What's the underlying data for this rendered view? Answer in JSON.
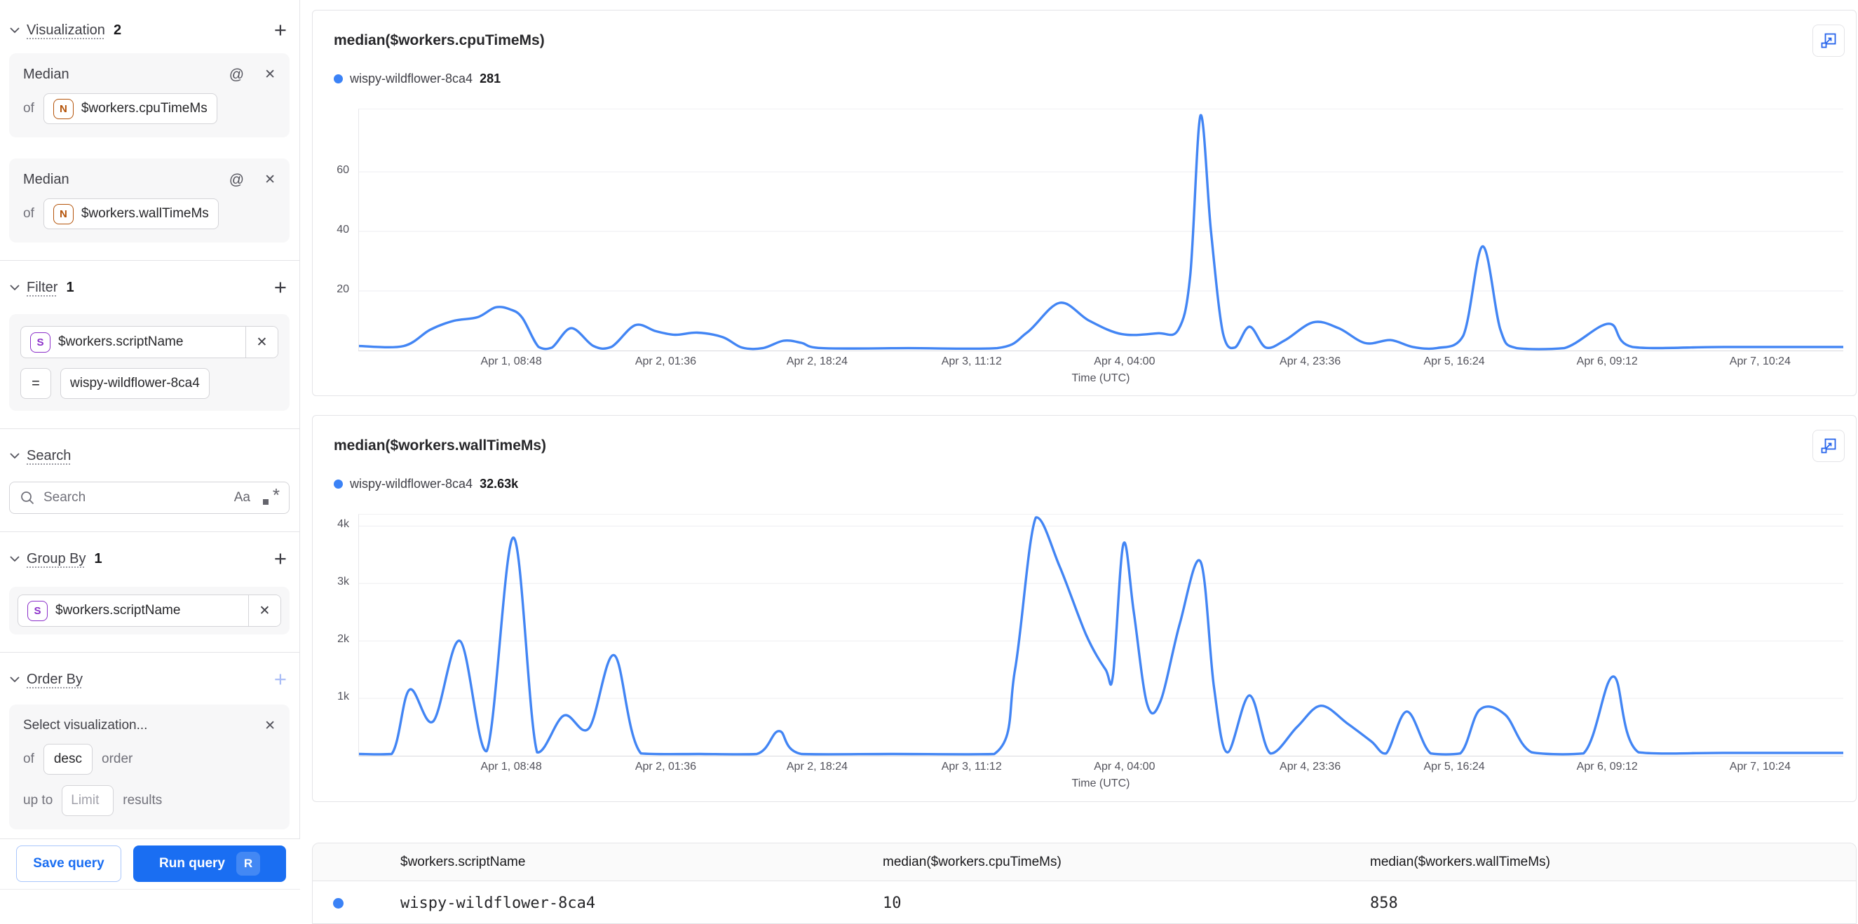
{
  "colors": {
    "accent_blue": "#1a6ef2",
    "chart_line": "#4285f4",
    "legend_dot": "#3b82f6",
    "numeric_badge": "#b45309",
    "string_badge": "#8b2fc9"
  },
  "sidebar": {
    "visualization": {
      "label": "Visualization",
      "count": "2",
      "cards": [
        {
          "title": "Median",
          "of_word": "of",
          "badge": "N",
          "field": "$workers.cpuTimeMs"
        },
        {
          "title": "Median",
          "of_word": "of",
          "badge": "N",
          "field": "$workers.wallTimeMs"
        }
      ]
    },
    "filter": {
      "label": "Filter",
      "count": "1",
      "badge": "S",
      "field": "$workers.scriptName",
      "operator": "=",
      "value": "wispy-wildflower-8ca4"
    },
    "search": {
      "label": "Search",
      "placeholder": "Search",
      "match_case": "Aa"
    },
    "group_by": {
      "label": "Group By",
      "count": "1",
      "badge": "S",
      "field": "$workers.scriptName"
    },
    "order_by": {
      "label": "Order By",
      "placeholder": "Select visualization...",
      "of_word": "of",
      "direction": "desc",
      "order_word": "order",
      "up_to_word": "up to",
      "limit_placeholder": "Limit",
      "results_word": "results"
    },
    "footer": {
      "save_label": "Save query",
      "run_label": "Run query",
      "run_shortcut": "R"
    }
  },
  "chart_data": [
    {
      "type": "line",
      "title": "median($workers.cpuTimeMs)",
      "legend": {
        "name": "wispy-wildflower-8ca4",
        "value": "281"
      },
      "xlabel": "Time (UTC)",
      "ylim": [
        0,
        81
      ],
      "yticks": [
        {
          "v": 20,
          "label": "20"
        },
        {
          "v": 40,
          "label": "40"
        },
        {
          "v": 60,
          "label": "60"
        }
      ],
      "xticks": [
        {
          "f": 0.103,
          "label": "Apr 1, 08:48"
        },
        {
          "f": 0.207,
          "label": "Apr 2, 01:36"
        },
        {
          "f": 0.309,
          "label": "Apr 2, 18:24"
        },
        {
          "f": 0.413,
          "label": "Apr 3, 11:12"
        },
        {
          "f": 0.516,
          "label": "Apr 4, 04:00"
        },
        {
          "f": 0.641,
          "label": "Apr 4, 23:36"
        },
        {
          "f": 0.738,
          "label": "Apr 5, 16:24"
        },
        {
          "f": 0.841,
          "label": "Apr 6, 09:12"
        },
        {
          "f": 0.944,
          "label": "Apr 7, 10:24"
        }
      ],
      "points": [
        [
          0.0,
          1.5
        ],
        [
          0.03,
          1.5
        ],
        [
          0.048,
          7
        ],
        [
          0.064,
          10
        ],
        [
          0.08,
          11.2
        ],
        [
          0.092,
          14.5
        ],
        [
          0.102,
          13.8
        ],
        [
          0.11,
          11
        ],
        [
          0.121,
          1.2
        ],
        [
          0.13,
          1
        ],
        [
          0.143,
          7.5
        ],
        [
          0.158,
          1.5
        ],
        [
          0.17,
          1.2
        ],
        [
          0.186,
          8.5
        ],
        [
          0.2,
          6.5
        ],
        [
          0.213,
          5.3
        ],
        [
          0.228,
          6
        ],
        [
          0.245,
          4.5
        ],
        [
          0.258,
          1
        ],
        [
          0.272,
          0.8
        ],
        [
          0.286,
          3.3
        ],
        [
          0.298,
          2.6
        ],
        [
          0.312,
          0.8
        ],
        [
          0.37,
          0.8
        ],
        [
          0.43,
          0.8
        ],
        [
          0.45,
          6
        ],
        [
          0.472,
          16
        ],
        [
          0.492,
          10
        ],
        [
          0.514,
          5.5
        ],
        [
          0.538,
          5.8
        ],
        [
          0.552,
          7
        ],
        [
          0.56,
          25
        ],
        [
          0.567,
          79
        ],
        [
          0.574,
          40
        ],
        [
          0.582,
          6
        ],
        [
          0.59,
          1
        ],
        [
          0.6,
          8
        ],
        [
          0.611,
          1
        ],
        [
          0.624,
          3.5
        ],
        [
          0.643,
          9.5
        ],
        [
          0.66,
          7.5
        ],
        [
          0.678,
          2.5
        ],
        [
          0.695,
          3.5
        ],
        [
          0.71,
          1.2
        ],
        [
          0.726,
          0.8
        ],
        [
          0.744,
          5
        ],
        [
          0.757,
          35
        ],
        [
          0.769,
          7
        ],
        [
          0.78,
          0.8
        ],
        [
          0.812,
          0.8
        ],
        [
          0.842,
          9
        ],
        [
          0.858,
          1.2
        ],
        [
          0.92,
          1.2
        ],
        [
          1.0,
          1.2
        ]
      ]
    },
    {
      "type": "line",
      "title": "median($workers.wallTimeMs)",
      "legend": {
        "name": "wispy-wildflower-8ca4",
        "value": "32.63k"
      },
      "xlabel": "Time (UTC)",
      "ylim": [
        0,
        4200
      ],
      "yticks": [
        {
          "v": 1000,
          "label": "1k"
        },
        {
          "v": 2000,
          "label": "2k"
        },
        {
          "v": 3000,
          "label": "3k"
        },
        {
          "v": 4000,
          "label": "4k"
        }
      ],
      "xticks": [
        {
          "f": 0.103,
          "label": "Apr 1, 08:48"
        },
        {
          "f": 0.207,
          "label": "Apr 2, 01:36"
        },
        {
          "f": 0.309,
          "label": "Apr 2, 18:24"
        },
        {
          "f": 0.413,
          "label": "Apr 3, 11:12"
        },
        {
          "f": 0.516,
          "label": "Apr 4, 04:00"
        },
        {
          "f": 0.641,
          "label": "Apr 4, 23:36"
        },
        {
          "f": 0.738,
          "label": "Apr 5, 16:24"
        },
        {
          "f": 0.841,
          "label": "Apr 6, 09:12"
        },
        {
          "f": 0.944,
          "label": "Apr 7, 10:24"
        }
      ],
      "points": [
        [
          0.0,
          30
        ],
        [
          0.022,
          30
        ],
        [
          0.034,
          1150
        ],
        [
          0.05,
          600
        ],
        [
          0.068,
          2000
        ],
        [
          0.086,
          80
        ],
        [
          0.104,
          3800
        ],
        [
          0.12,
          60
        ],
        [
          0.138,
          700
        ],
        [
          0.155,
          480
        ],
        [
          0.172,
          1750
        ],
        [
          0.19,
          40
        ],
        [
          0.23,
          30
        ],
        [
          0.268,
          30
        ],
        [
          0.283,
          430
        ],
        [
          0.298,
          30
        ],
        [
          0.36,
          30
        ],
        [
          0.428,
          30
        ],
        [
          0.442,
          1500
        ],
        [
          0.456,
          4150
        ],
        [
          0.472,
          3300
        ],
        [
          0.49,
          2100
        ],
        [
          0.503,
          1500
        ],
        [
          0.508,
          1400
        ],
        [
          0.515,
          3690
        ],
        [
          0.522,
          2500
        ],
        [
          0.531,
          900
        ],
        [
          0.54,
          950
        ],
        [
          0.553,
          2300
        ],
        [
          0.567,
          3380
        ],
        [
          0.576,
          1200
        ],
        [
          0.585,
          60
        ],
        [
          0.6,
          1050
        ],
        [
          0.614,
          40
        ],
        [
          0.632,
          500
        ],
        [
          0.648,
          870
        ],
        [
          0.666,
          560
        ],
        [
          0.682,
          250
        ],
        [
          0.692,
          40
        ],
        [
          0.706,
          770
        ],
        [
          0.722,
          40
        ],
        [
          0.742,
          40
        ],
        [
          0.755,
          800
        ],
        [
          0.772,
          720
        ],
        [
          0.79,
          60
        ],
        [
          0.825,
          40
        ],
        [
          0.845,
          1380
        ],
        [
          0.862,
          60
        ],
        [
          0.92,
          50
        ],
        [
          1.0,
          50
        ]
      ]
    }
  ],
  "table": {
    "headers": [
      "$workers.scriptName",
      "median($workers.cpuTimeMs)",
      "median($workers.wallTimeMs)"
    ],
    "rows": [
      [
        "wispy-wildflower-8ca4",
        "10",
        "858"
      ]
    ]
  }
}
